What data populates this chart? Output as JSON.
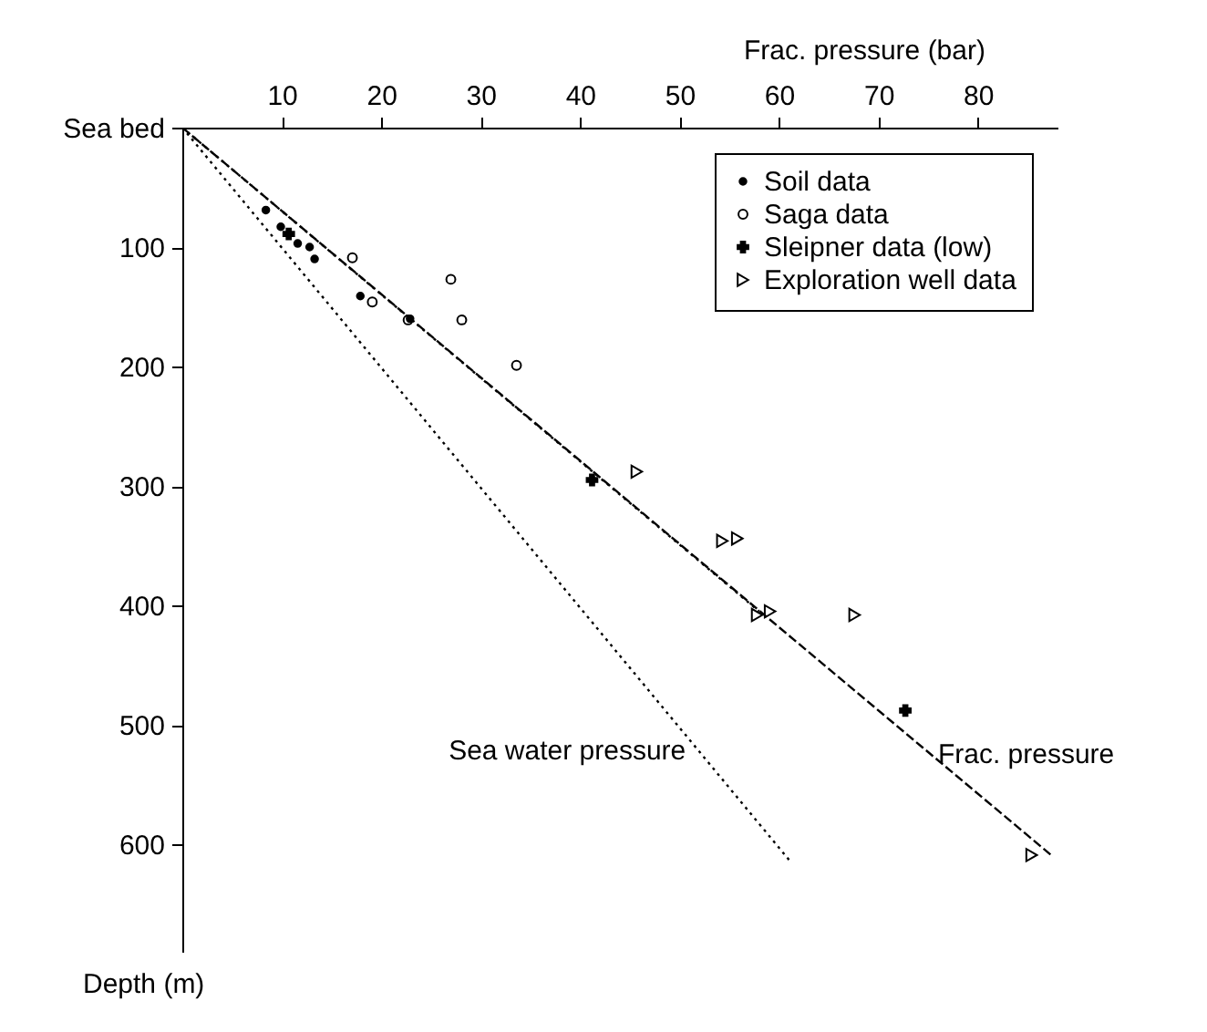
{
  "chart_data": {
    "type": "scatter",
    "xlabel": "Frac. pressure (bar)",
    "ylabel": "Depth (m)",
    "xlim": [
      0,
      88
    ],
    "xticks": [
      10,
      20,
      30,
      40,
      50,
      60,
      70,
      80
    ],
    "ylim": [
      690,
      0
    ],
    "yticks": [
      {
        "value": 0,
        "label": "Sea bed"
      },
      100,
      200,
      300,
      400,
      500,
      600
    ],
    "legend": "top right",
    "grid": false,
    "series": [
      {
        "name": "Soil data",
        "color": "#000000",
        "marker": "point",
        "x": [
          8.4,
          9.9,
          11.6,
          12.8,
          13.3,
          17.9,
          22.9
        ],
        "values": [
          69,
          83,
          97,
          100,
          110,
          141,
          160
        ]
      },
      {
        "name": "Saga data",
        "color": "#000000",
        "marker": "circle",
        "x": [
          17.1,
          19.1,
          22.7,
          27.0,
          28.1,
          33.6
        ],
        "values": [
          109,
          146,
          161,
          127,
          161,
          199
        ]
      },
      {
        "name": "Sleipner data (low)",
        "color": "#000000",
        "marker": "cross",
        "x": [
          10.7,
          41.2,
          72.7
        ],
        "values": [
          89,
          295,
          488
        ]
      },
      {
        "name": "Exploration well data",
        "color": "#000000",
        "marker": "triangle-right",
        "x": [
          45.7,
          54.3,
          55.8,
          57.8,
          59.1,
          67.6,
          85.4
        ],
        "values": [
          288,
          346,
          344,
          408,
          405,
          408,
          609
        ]
      },
      {
        "type": "line",
        "name": "Sea water pressure",
        "color": "#000000",
        "line_style": "dotted",
        "x": [
          0,
          61
        ],
        "values": [
          0,
          613
        ]
      },
      {
        "type": "line",
        "color": "#000000",
        "line_style": "dotted",
        "x": [
          0,
          58
        ],
        "values": [
          0,
          405
        ]
      },
      {
        "type": "line",
        "name": "Frac. pressure",
        "color": "#000000",
        "line_style": "dashed",
        "x": [
          0,
          87.5
        ],
        "values": [
          0,
          610
        ]
      }
    ]
  }
}
